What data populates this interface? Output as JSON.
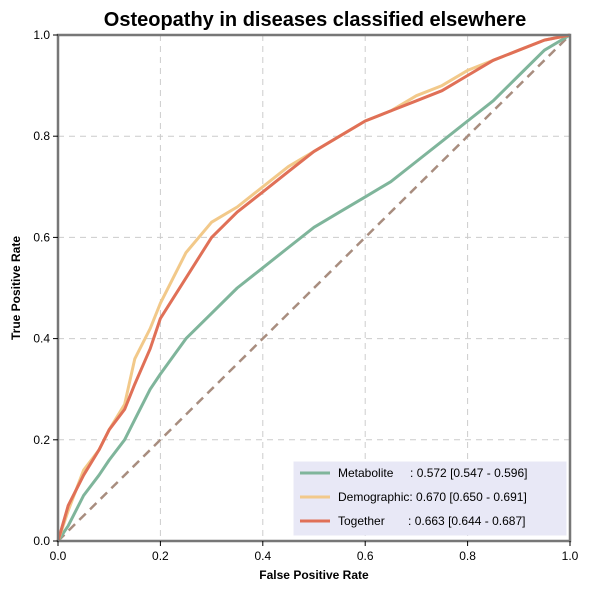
{
  "chart_data": {
    "type": "line",
    "title": "Osteopathy in diseases classified elsewhere",
    "xlabel": "False Positive Rate",
    "ylabel": "True Positive Rate",
    "xlim": [
      0,
      1
    ],
    "ylim": [
      0,
      1
    ],
    "xticks": [
      "0.0",
      "0.2",
      "0.4",
      "0.6",
      "0.8",
      "1.0"
    ],
    "yticks": [
      "0.0",
      "0.2",
      "0.4",
      "0.6",
      "0.8",
      "1.0"
    ],
    "grid": true,
    "legend_position": "bottom-right",
    "series": [
      {
        "name": "Metabolite",
        "legend_label": "Metabolite     : 0.572 [0.547 - 0.596]",
        "color": "#7fb59b",
        "x": [
          0,
          0.02,
          0.05,
          0.08,
          0.1,
          0.13,
          0.15,
          0.18,
          0.2,
          0.25,
          0.3,
          0.35,
          0.4,
          0.45,
          0.5,
          0.55,
          0.6,
          0.65,
          0.7,
          0.75,
          0.8,
          0.85,
          0.9,
          0.95,
          1.0
        ],
        "y": [
          0,
          0.03,
          0.09,
          0.13,
          0.16,
          0.2,
          0.24,
          0.3,
          0.33,
          0.4,
          0.45,
          0.5,
          0.54,
          0.58,
          0.62,
          0.65,
          0.68,
          0.71,
          0.75,
          0.79,
          0.83,
          0.87,
          0.92,
          0.97,
          1.0
        ]
      },
      {
        "name": "Demographic",
        "legend_label": "Demographic: 0.670 [0.650 - 0.691]",
        "color": "#f2c98a",
        "x": [
          0,
          0.02,
          0.05,
          0.08,
          0.1,
          0.13,
          0.15,
          0.18,
          0.2,
          0.25,
          0.3,
          0.35,
          0.4,
          0.45,
          0.5,
          0.55,
          0.6,
          0.65,
          0.7,
          0.75,
          0.8,
          0.85,
          0.9,
          0.95,
          1.0
        ],
        "y": [
          0,
          0.06,
          0.14,
          0.18,
          0.22,
          0.27,
          0.36,
          0.42,
          0.47,
          0.57,
          0.63,
          0.66,
          0.7,
          0.74,
          0.77,
          0.8,
          0.83,
          0.85,
          0.88,
          0.9,
          0.93,
          0.95,
          0.97,
          0.99,
          1.0
        ]
      },
      {
        "name": "Together",
        "legend_label": "Together       : 0.663 [0.644 - 0.687]",
        "color": "#e07057",
        "x": [
          0,
          0.02,
          0.05,
          0.08,
          0.1,
          0.13,
          0.15,
          0.18,
          0.2,
          0.25,
          0.3,
          0.35,
          0.4,
          0.45,
          0.5,
          0.55,
          0.6,
          0.65,
          0.7,
          0.75,
          0.8,
          0.85,
          0.9,
          0.95,
          1.0
        ],
        "y": [
          0,
          0.07,
          0.13,
          0.18,
          0.22,
          0.26,
          0.31,
          0.38,
          0.44,
          0.52,
          0.6,
          0.65,
          0.69,
          0.73,
          0.77,
          0.8,
          0.83,
          0.85,
          0.87,
          0.89,
          0.92,
          0.95,
          0.97,
          0.99,
          1.0
        ]
      }
    ],
    "reference_line": {
      "x": [
        0,
        1
      ],
      "y": [
        0,
        1
      ],
      "color": "#a88d7f",
      "dash": true
    }
  }
}
